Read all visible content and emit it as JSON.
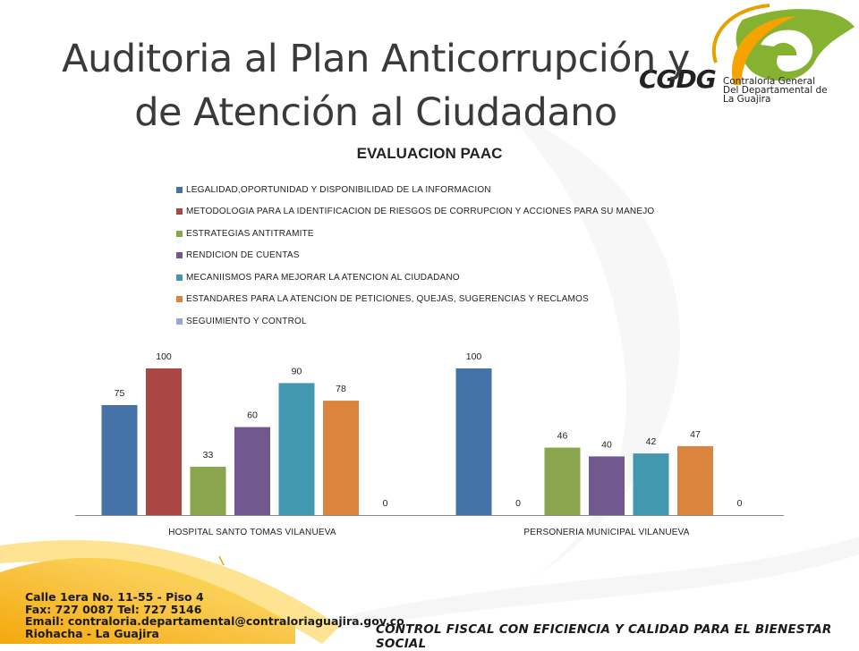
{
  "slide": {
    "title_line1": "Auditoria al Plan Anticorrupción y",
    "title_line2": "de Atención al Ciudadano"
  },
  "logo": {
    "mark": "CGDG",
    "subtitle_line1": "Contraloría General",
    "subtitle_line2": "Del Departamental de",
    "subtitle_line3": "La Guajira"
  },
  "footer": {
    "address_line1": "Calle 1era No. 11-55 - Piso 4",
    "address_line2": "Fax: 727 0087 Tel: 727 5146",
    "address_line3": "Email: contraloria.departamental@contraloriaguajira.gov.co",
    "address_line4": "Riohacha - La Guajira",
    "slogan": "CONTROL FISCAL CON EFICIENCIA Y CALIDAD PARA EL BIENESTAR SOCIAL"
  },
  "chart_data": {
    "type": "bar",
    "title": "EVALUACION PAAC",
    "categories": [
      "HOSPITAL SANTO TOMAS VILANUEVA",
      "PERSONERIA MUNICIPAL VILANUEVA"
    ],
    "series": [
      {
        "name": "LEGALIDAD,OPORTUNIDAD Y DISPONIBILIDAD DE LA INFORMACION",
        "values": [
          75,
          100
        ],
        "color": "#4572a7"
      },
      {
        "name": "METODOLOGIA PARA LA IDENTIFICACION  DE RIESGOS DE CORRUPCION Y ACCIONES PARA SU MANEJO",
        "values": [
          100,
          0
        ],
        "color": "#aa4643"
      },
      {
        "name": "ESTRATEGIAS ANTITRAMITE",
        "values": [
          33,
          46
        ],
        "color": "#89a54e"
      },
      {
        "name": "RENDICION DE CUENTAS",
        "values": [
          60,
          40
        ],
        "color": "#71588f"
      },
      {
        "name": "MECANIISMOS PARA MEJORAR LA ATENCION AL CIUDADANO",
        "values": [
          90,
          42
        ],
        "color": "#4198af"
      },
      {
        "name": "ESTANDARES PARA LA ATENCION DE PETICIONES, QUEJAS, SUGERENCIAS Y RECLAMOS",
        "values": [
          78,
          47
        ],
        "color": "#db843d"
      },
      {
        "name": "SEGUIMIENTO Y CONTROL",
        "values": [
          0,
          0
        ],
        "color": "#93a9cf"
      }
    ],
    "ylim": [
      0,
      100
    ],
    "grid": false,
    "legend_position": "top",
    "data_labels": true
  }
}
